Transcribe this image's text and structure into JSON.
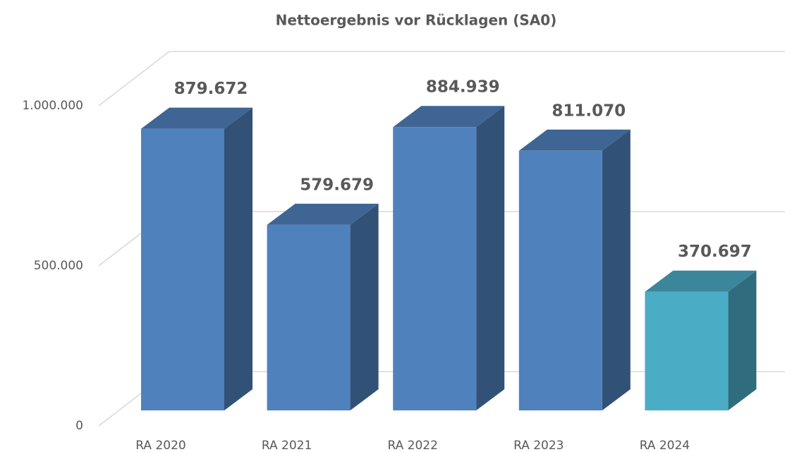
{
  "chart_data": {
    "type": "bar3d",
    "title": "Nettoergebnis vor Rücklagen (SA0)",
    "categories": [
      "RA 2020",
      "RA 2021",
      "RA 2022",
      "RA 2023",
      "RA 2024"
    ],
    "values": [
      879672,
      579679,
      884939,
      811070,
      370697
    ],
    "value_labels": [
      "879.672",
      "579.679",
      "884.939",
      "811.070",
      "370.697"
    ],
    "colors": [
      "#4f81bd",
      "#4f81bd",
      "#4f81bd",
      "#4f81bd",
      "#4bacc6"
    ],
    "ylim": [
      0,
      1000000
    ],
    "yticks": [
      0,
      {
        "value": 500000,
        "label": "500.000"
      },
      {
        "value": 1000000,
        "label": "1.000.000"
      }
    ],
    "grid": true
  }
}
